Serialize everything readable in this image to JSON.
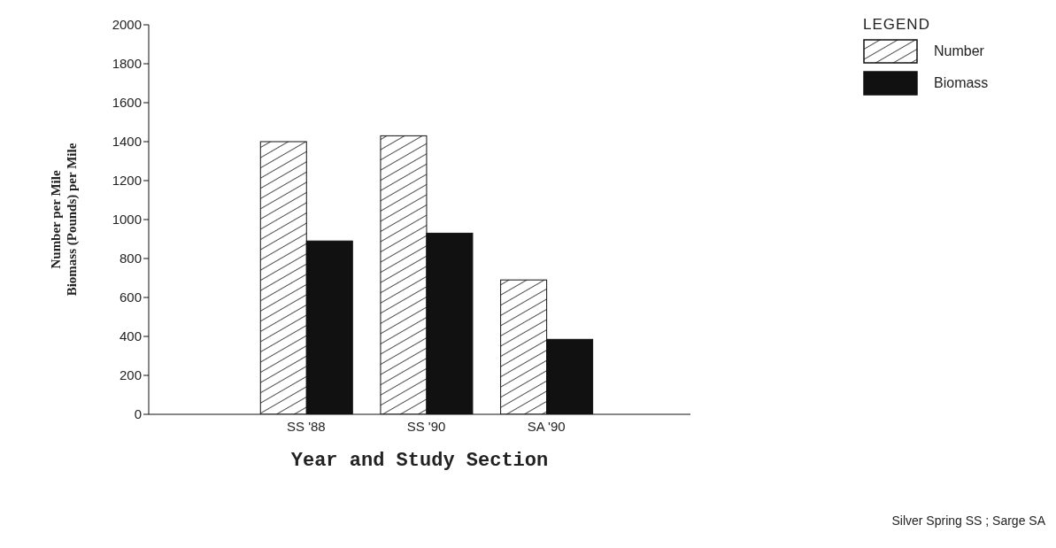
{
  "chart_data": {
    "type": "bar",
    "categories": [
      "SS '88",
      "SS '90",
      "SA '90"
    ],
    "series": [
      {
        "name": "Number",
        "color": "#ffffff",
        "values": [
          1400,
          1430,
          690
        ]
      },
      {
        "name": "Biomass",
        "color": "#111111",
        "values": [
          890,
          930,
          385
        ]
      }
    ],
    "xlabel": "Year and Study Section",
    "ylabel": "Number per Mile\nBiomass (Pounds) per Mile",
    "legend_title": "LEGEND",
    "legend": "top right",
    "ylim": [
      0,
      2000
    ],
    "yticks": [
      0,
      200,
      400,
      600,
      800,
      1000,
      1200,
      1400,
      1600,
      1800,
      2000
    ],
    "grid": false,
    "annotations": [
      "Silver Spring SS ; Sarge SA"
    ]
  }
}
